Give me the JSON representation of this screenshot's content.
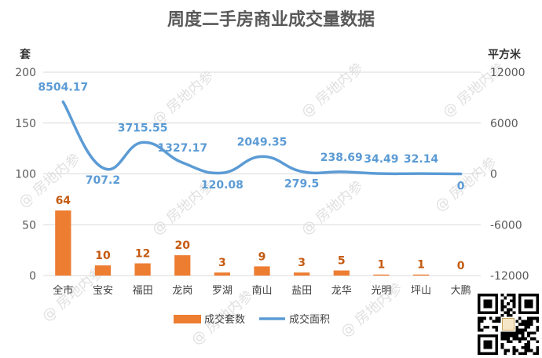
{
  "chart_data": {
    "type": "bar",
    "title": "周度二手房商业成交量数据",
    "ylabel": "套",
    "y2label": "平方米",
    "ylim": [
      0,
      200
    ],
    "y2lim": [
      -12000,
      12000
    ],
    "yticks": [
      0,
      50,
      100,
      150,
      200
    ],
    "y2ticks": [
      -12000,
      -6000,
      0,
      6000,
      12000
    ],
    "y2ticklabels": [
      "-12000",
      "-6000",
      "0",
      "6000",
      "12000"
    ],
    "categories": [
      "全市",
      "宝安",
      "福田",
      "龙岗",
      "罗湖",
      "南山",
      "盐田",
      "龙华",
      "光明",
      "坪山",
      "大鹏"
    ],
    "series": [
      {
        "name": "成交套数",
        "type": "bar",
        "axis": "left",
        "values": [
          64,
          10,
          12,
          20,
          3,
          9,
          3,
          5,
          1,
          1,
          0
        ]
      },
      {
        "name": "成交面积",
        "type": "line",
        "axis": "right",
        "smooth": true,
        "values": [
          8504.17,
          707.2,
          3715.55,
          1327.17,
          120.08,
          2049.35,
          279.5,
          238.69,
          34.49,
          32.14,
          0
        ],
        "labels": [
          "8504.17",
          "707.2",
          "3715.55",
          "1327.17",
          "120.08",
          "2049.35",
          "279.5",
          "238.69",
          "34.49",
          "32.14",
          "0"
        ]
      }
    ],
    "grid": true,
    "legend_position": "bottom",
    "colors": {
      "bar": "#ED7D31",
      "line": "#5B9BD5",
      "bar_label": "#C55A11",
      "grid": "#D9D9D9"
    },
    "watermark": "@ 房地内参"
  }
}
